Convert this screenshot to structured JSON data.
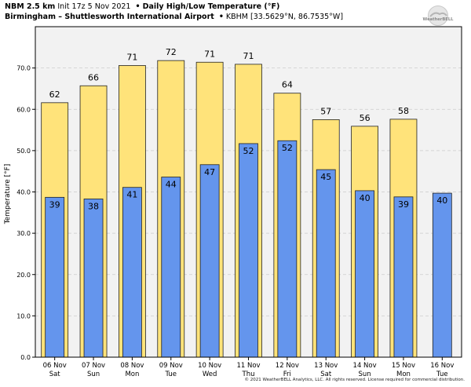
{
  "header": {
    "model": "NBM 2.5 km",
    "init": "Init 17z 5 Nov 2021",
    "product": "Daily High/Low Temperature (°F)",
    "location": "Birmingham – Shuttlesworth International Airport",
    "station": "KBHM [33.5629°N, 86.7535°W]",
    "separator": "•"
  },
  "logo": {
    "text": "WeatherBELL"
  },
  "copyright": "© 2021 WeatherBELL Analytics, LLC. All rights reserved. License required for commercial distribution.",
  "colors": {
    "high": "#FFE37A",
    "low": "#6495ED",
    "grid": "#cccccc",
    "plot_bg": "#f2f2f2"
  },
  "chart_data": {
    "type": "bar",
    "categories": [
      [
        "06 Nov",
        "Sat"
      ],
      [
        "07 Nov",
        "Sun"
      ],
      [
        "08 Nov",
        "Mon"
      ],
      [
        "09 Nov",
        "Tue"
      ],
      [
        "10 Nov",
        "Wed"
      ],
      [
        "11 Nov",
        "Thu"
      ],
      [
        "12 Nov",
        "Fri"
      ],
      [
        "13 Nov",
        "Sat"
      ],
      [
        "14 Nov",
        "Sun"
      ],
      [
        "15 Nov",
        "Mon"
      ],
      [
        "16 Nov",
        "Tue"
      ]
    ],
    "series": [
      {
        "values": [
          61.6,
          65.7,
          70.6,
          71.8,
          71.4,
          70.9,
          63.9,
          57.5,
          55.9,
          57.6,
          null
        ],
        "labels": [
          "62",
          "66",
          "71",
          "72",
          "71",
          "71",
          "64",
          "57",
          "56",
          "58",
          ""
        ]
      },
      {
        "values": [
          38.7,
          38.3,
          41.1,
          43.6,
          46.6,
          51.7,
          52.4,
          45.4,
          40.3,
          38.8,
          39.7
        ],
        "labels": [
          "39",
          "38",
          "41",
          "44",
          "47",
          "52",
          "52",
          "45",
          "40",
          "39",
          "40"
        ]
      }
    ],
    "ylabel": "Temperature [°F]",
    "ylim": [
      0,
      80
    ],
    "yticks": [
      "0.0",
      "10.0",
      "20.0",
      "30.0",
      "40.0",
      "50.0",
      "60.0",
      "70.0"
    ],
    "grid": true
  }
}
